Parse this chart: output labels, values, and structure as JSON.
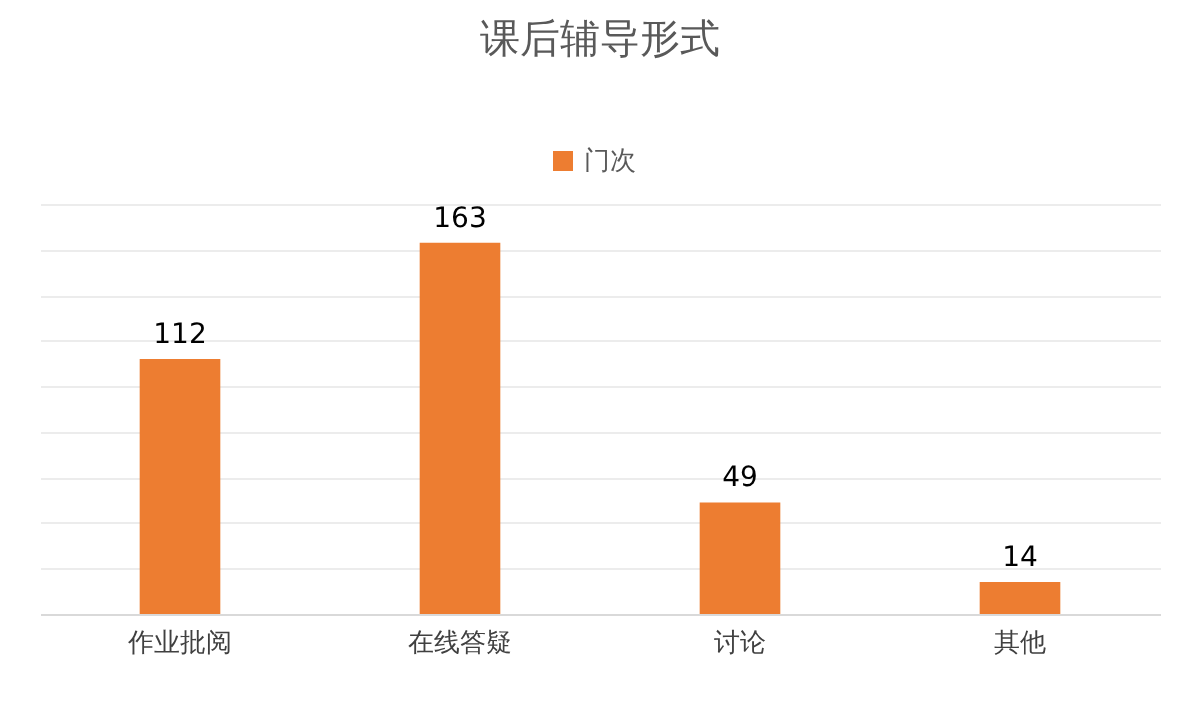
{
  "chart_data": {
    "type": "bar",
    "title": "课后辅导形式",
    "categories": [
      "作业批阅",
      "在线答疑",
      "讨论",
      "其他"
    ],
    "series": [
      {
        "name": "门次",
        "color": "#ed7d31",
        "values": [
          112,
          163,
          49,
          14
        ]
      }
    ],
    "grid": "y",
    "legend": "top",
    "tick_labels": "x",
    "data_labels": true
  }
}
